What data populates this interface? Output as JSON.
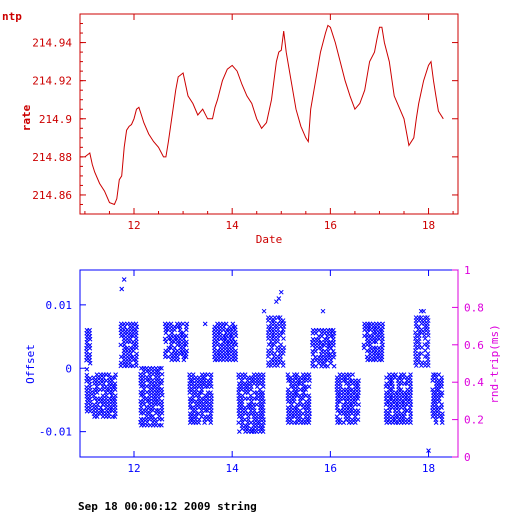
{
  "header_label": "ntp",
  "footer_label": "Sep 18 00:00:12 2009 string",
  "colors": {
    "rate": "#cc0000",
    "offset": "#0000ff",
    "rndtrip": "#dd00dd",
    "text": "#000000"
  },
  "chart_data": [
    {
      "type": "line",
      "xlabel": "Date",
      "ylabel": "rate",
      "xlim": [
        10.9,
        18.6
      ],
      "ylim": [
        214.85,
        214.955
      ],
      "xticks": [
        12,
        14,
        16,
        18
      ],
      "yticks": [
        214.86,
        214.88,
        214.9,
        214.92,
        214.94
      ],
      "xticklabels": [
        "12",
        "14",
        "16",
        "18"
      ],
      "yticklabels": [
        "214.86",
        "214.88",
        "214.9",
        "214.92",
        "214.94"
      ],
      "x": [
        11.0,
        11.1,
        11.15,
        11.2,
        11.3,
        11.4,
        11.5,
        11.6,
        11.65,
        11.7,
        11.75,
        11.8,
        11.85,
        11.9,
        11.95,
        12.0,
        12.05,
        12.1,
        12.15,
        12.2,
        12.3,
        12.4,
        12.5,
        12.6,
        12.65,
        12.7,
        12.8,
        12.85,
        12.9,
        13.0,
        13.1,
        13.2,
        13.3,
        13.4,
        13.5,
        13.6,
        13.65,
        13.7,
        13.8,
        13.9,
        14.0,
        14.1,
        14.2,
        14.3,
        14.4,
        14.5,
        14.6,
        14.7,
        14.8,
        14.9,
        14.95,
        15.0,
        15.05,
        15.1,
        15.2,
        15.3,
        15.4,
        15.5,
        15.55,
        15.6,
        15.7,
        15.8,
        15.9,
        15.95,
        16.0,
        16.1,
        16.2,
        16.3,
        16.4,
        16.5,
        16.6,
        16.7,
        16.8,
        16.9,
        16.95,
        17.0,
        17.05,
        17.1,
        17.2,
        17.3,
        17.4,
        17.5,
        17.6,
        17.7,
        17.75,
        17.8,
        17.9,
        18.0,
        18.05,
        18.1,
        18.15,
        18.2,
        18.3
      ],
      "series": [
        {
          "values": [
            214.88,
            214.882,
            214.876,
            214.872,
            214.866,
            214.862,
            214.856,
            214.855,
            214.858,
            214.868,
            214.87,
            214.885,
            214.894,
            214.896,
            214.897,
            214.9,
            214.905,
            214.906,
            214.902,
            214.898,
            214.892,
            214.888,
            214.885,
            214.88,
            214.88,
            214.888,
            214.906,
            214.915,
            214.922,
            214.924,
            214.912,
            214.908,
            214.902,
            214.905,
            214.9,
            214.9,
            214.906,
            214.91,
            214.92,
            214.926,
            214.928,
            214.925,
            214.918,
            214.912,
            214.908,
            214.9,
            214.895,
            214.898,
            214.91,
            214.93,
            214.935,
            214.936,
            214.946,
            214.935,
            214.92,
            214.905,
            214.896,
            214.89,
            214.888,
            214.905,
            214.92,
            214.935,
            214.945,
            214.949,
            214.948,
            214.94,
            214.93,
            214.92,
            214.912,
            214.905,
            214.908,
            214.915,
            214.93,
            214.935,
            214.942,
            214.948,
            214.948,
            214.94,
            214.93,
            214.912,
            214.906,
            214.9,
            214.886,
            214.89,
            214.9,
            214.908,
            214.92,
            214.928,
            214.93,
            214.92,
            214.912,
            214.904,
            214.9
          ]
        }
      ]
    },
    {
      "type": "scatter",
      "ylabel": "Offset",
      "y2label": "rnd-trip(ms)",
      "xlim": [
        10.9,
        18.6
      ],
      "ylim": [
        -0.014,
        0.0155
      ],
      "y2lim": [
        0,
        1
      ],
      "xticks": [
        12,
        14,
        16,
        18
      ],
      "yticks": [
        -0.01,
        0,
        0.01
      ],
      "y2ticks": [
        0,
        0.2,
        0.4,
        0.6,
        0.8,
        1
      ],
      "xticklabels": [
        "12",
        "14",
        "16",
        "18"
      ],
      "yticklabels": [
        "-0.01",
        "0",
        "0.01"
      ],
      "y2ticklabels": [
        "0",
        "0.2",
        "0.4",
        "0.6",
        "0.8",
        "1"
      ],
      "segments": [
        {
          "x0": 11.0,
          "x1": 11.15,
          "lo": -0.007,
          "hi": 0.006
        },
        {
          "x0": 11.15,
          "x1": 11.7,
          "lo": -0.008,
          "hi": -0.001
        },
        {
          "x0": 11.7,
          "x1": 12.1,
          "lo": 0.0,
          "hi": 0.007
        },
        {
          "x0": 12.1,
          "x1": 12.6,
          "lo": -0.009,
          "hi": 0.0
        },
        {
          "x0": 12.6,
          "x1": 13.1,
          "lo": 0.001,
          "hi": 0.007
        },
        {
          "x0": 13.1,
          "x1": 13.6,
          "lo": -0.009,
          "hi": -0.001
        },
        {
          "x0": 13.6,
          "x1": 14.1,
          "lo": 0.001,
          "hi": 0.007
        },
        {
          "x0": 14.1,
          "x1": 14.7,
          "lo": -0.01,
          "hi": -0.001
        },
        {
          "x0": 14.7,
          "x1": 15.1,
          "lo": 0.0,
          "hi": 0.008
        },
        {
          "x0": 15.1,
          "x1": 15.6,
          "lo": -0.009,
          "hi": -0.001
        },
        {
          "x0": 15.6,
          "x1": 16.1,
          "lo": 0.0,
          "hi": 0.006
        },
        {
          "x0": 16.1,
          "x1": 16.65,
          "lo": -0.009,
          "hi": -0.001
        },
        {
          "x0": 16.65,
          "x1": 17.1,
          "lo": 0.001,
          "hi": 0.007
        },
        {
          "x0": 17.1,
          "x1": 17.7,
          "lo": -0.009,
          "hi": -0.001
        },
        {
          "x0": 17.7,
          "x1": 18.05,
          "lo": 0.0,
          "hi": 0.008
        },
        {
          "x0": 18.05,
          "x1": 18.3,
          "lo": -0.009,
          "hi": -0.001
        }
      ],
      "outliers": [
        {
          "x": 11.8,
          "y": 0.014
        },
        {
          "x": 11.75,
          "y": 0.0125
        },
        {
          "x": 14.95,
          "y": 0.011
        },
        {
          "x": 15.0,
          "y": 0.012
        },
        {
          "x": 14.9,
          "y": 0.0105
        },
        {
          "x": 14.65,
          "y": 0.009
        },
        {
          "x": 15.85,
          "y": 0.009
        },
        {
          "x": 17.85,
          "y": 0.009
        },
        {
          "x": 17.9,
          "y": 0.009
        },
        {
          "x": 14.4,
          "y": -0.01
        },
        {
          "x": 18.0,
          "y": -0.013
        },
        {
          "x": 13.45,
          "y": 0.007
        }
      ]
    }
  ]
}
